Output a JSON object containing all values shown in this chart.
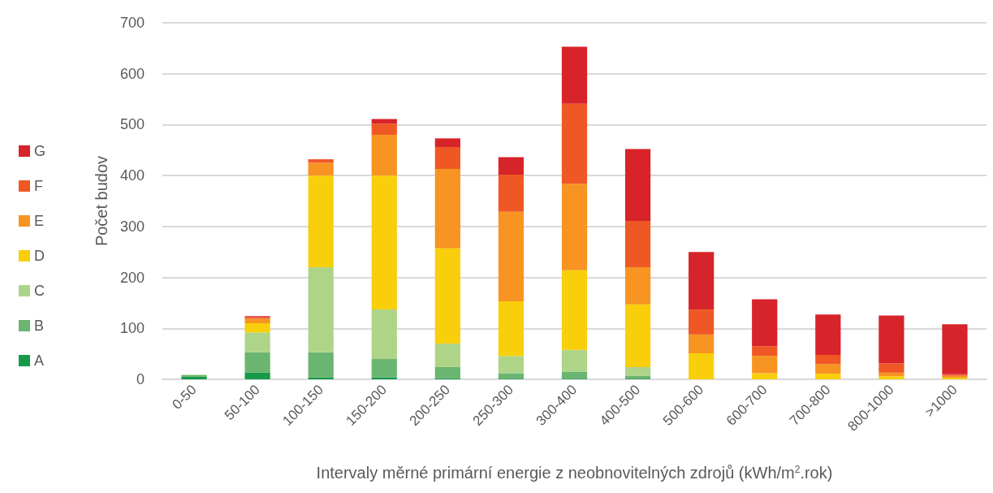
{
  "chart_data": {
    "type": "bar",
    "stacked": true,
    "xlabel": "Intervaly měrné primární energie z neobnovitelných zdrojů (kWh/m$^{2}$.rok)",
    "ylabel": "Počet budov",
    "categories": [
      "0-50",
      "50-100",
      "100-150",
      "150-200",
      "200-250",
      "250-300",
      "300-400",
      "400-500",
      "500-600",
      "600-700",
      "700-800",
      "800-1000",
      ">1000"
    ],
    "series": [
      {
        "name": "A",
        "color": "#17994a",
        "values": [
          5,
          13,
          4,
          4,
          2,
          1,
          1,
          1,
          0,
          0,
          0,
          0,
          0
        ]
      },
      {
        "name": "B",
        "color": "#6ab56f",
        "values": [
          3,
          40,
          49,
          36,
          22,
          11,
          14,
          6,
          0,
          0,
          0,
          0,
          0
        ]
      },
      {
        "name": "C",
        "color": "#aed488",
        "values": [
          1,
          39,
          167,
          97,
          46,
          34,
          43,
          17,
          0,
          0,
          0,
          0,
          0
        ]
      },
      {
        "name": "D",
        "color": "#f9cf0b",
        "values": [
          0,
          18,
          180,
          263,
          187,
          107,
          156,
          123,
          51,
          12,
          11,
          6,
          3
        ]
      },
      {
        "name": "E",
        "color": "#f79422",
        "values": [
          0,
          9,
          25,
          80,
          156,
          176,
          170,
          73,
          37,
          34,
          19,
          7,
          4
        ]
      },
      {
        "name": "F",
        "color": "#ef5825",
        "values": [
          0,
          3,
          7,
          22,
          43,
          73,
          157,
          91,
          49,
          19,
          18,
          18,
          3
        ]
      },
      {
        "name": "G",
        "color": "#d7232a",
        "values": [
          0,
          2,
          0,
          9,
          17,
          34,
          112,
          141,
          113,
          92,
          79,
          94,
          98
        ]
      }
    ],
    "ylim": [
      0,
      700
    ],
    "yticks": [
      0,
      100,
      200,
      300,
      400,
      500,
      600,
      700
    ],
    "grid": "y",
    "legend": "left"
  }
}
